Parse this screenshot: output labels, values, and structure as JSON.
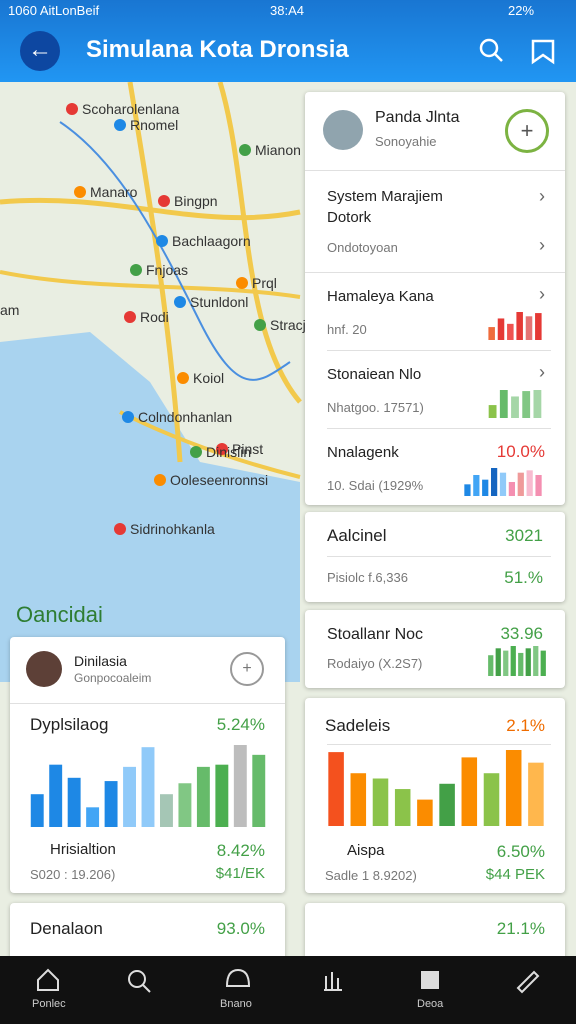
{
  "status_bar": {
    "left": "1060 AitLonBeif",
    "time": "38:A4",
    "battery": "22%"
  },
  "header": {
    "title": "Simulana Kota Dronsia"
  },
  "map": {
    "labels": [
      "Scoharolenlana",
      "Rnomel",
      "Mianon",
      "Manaro",
      "Bingpn",
      "Bachlaagorn",
      "Fnjoas",
      "Prql",
      "Rodi",
      "Stunldonl",
      "Stracje",
      "Koiol",
      "Pinst",
      "Colndonhanlan",
      "Dinislin",
      "Ooleseenronnsi",
      "Sidrinohkanla",
      "am"
    ],
    "region_label": "Oancidai"
  },
  "profile": {
    "name": "Panda Jlnta",
    "subtitle": "Sonoyahie"
  },
  "menu": [
    "System Marajiem\nDotork",
    "Ondotoyoan"
  ],
  "stats": [
    {
      "title": "Hamaleya Kana",
      "detail": "hnf. 20",
      "bars": [
        12,
        20,
        15,
        26,
        22,
        25
      ],
      "colors": [
        "#ef6c3c",
        "#e53935",
        "#ef5350",
        "#e53935",
        "#e57373",
        "#e53935"
      ]
    },
    {
      "title": "Stonaiean Nlo",
      "detail": "Nhatgoo. 17571)",
      "bars": [
        12,
        26,
        20,
        25,
        26
      ],
      "colors": [
        "#8bc34a",
        "#66bb6a",
        "#a5d6a7",
        "#81c784",
        "#a5d6a7"
      ]
    },
    {
      "title": "Nnalagenk",
      "value": "10.0%",
      "detail": "10. Sdai (1929%",
      "bars": [
        10,
        18,
        14,
        24,
        20,
        12,
        20,
        22,
        18
      ],
      "colors": [
        "#1e88e5",
        "#42a5f5",
        "#1e88e5",
        "#1565c0",
        "#90caf9",
        "#f48fb1",
        "#ef9a9a",
        "#f8bbd0",
        "#f48fb1"
      ]
    }
  ],
  "summary": [
    {
      "title": "Aalcinel",
      "value": "3021",
      "detail": "Pisiolc f.6,336",
      "value2": "51.%"
    },
    {
      "title": "Stoallanr Noc",
      "value": "33.96",
      "detail": "Rodaiyo (X.2S7)",
      "bars": [
        18,
        24,
        22,
        26,
        20,
        24,
        26,
        22
      ],
      "colors": [
        "#66bb6a",
        "#43a047",
        "#81c784",
        "#4caf50",
        "#66bb6a",
        "#43a047",
        "#81c784",
        "#4caf50"
      ]
    }
  ],
  "left_card": {
    "name": "Dinilasia",
    "subtitle": "Gonpocoaleim",
    "chart_title": "Dyplsilaog",
    "chart_value": "5.24%",
    "bars": [
      30,
      57,
      45,
      18,
      42,
      55,
      73,
      30,
      40,
      55,
      57,
      75,
      66
    ],
    "colors": [
      "#1e88e5",
      "#1e88e5",
      "#1e88e5",
      "#42a5f5",
      "#1e88e5",
      "#90caf9",
      "#90caf9",
      "#a5c6b5",
      "#81c784",
      "#66bb6a",
      "#4caf50",
      "#bdbdbd",
      "#66bb6a"
    ],
    "footer_title": "Hrisialtion",
    "footer_value": "8.42%",
    "footer_detail": "S020 : 19.206)",
    "footer_value2": "$41/EK"
  },
  "right_card": {
    "chart_title": "Sadeleis",
    "chart_value": "2.1%",
    "bars": [
      70,
      50,
      45,
      35,
      25,
      40,
      65,
      50,
      72,
      60
    ],
    "colors": [
      "#f4511e",
      "#fb8c00",
      "#8bc34a",
      "#8bc34a",
      "#fb8c00",
      "#43a047",
      "#fb8c00",
      "#8bc34a",
      "#fb8c00",
      "#ffb74d"
    ],
    "footer_title": "Aispa",
    "footer_value": "6.50%",
    "footer_detail": "Sadle 1 8.9202)",
    "footer_value2": "$44 PEK"
  },
  "bottom_cards": [
    {
      "title": "Denalaon",
      "value": "93.0%"
    },
    {
      "value": "21.1%"
    }
  ],
  "nav": [
    "Ponlec",
    "Bnano",
    "Deoa"
  ]
}
